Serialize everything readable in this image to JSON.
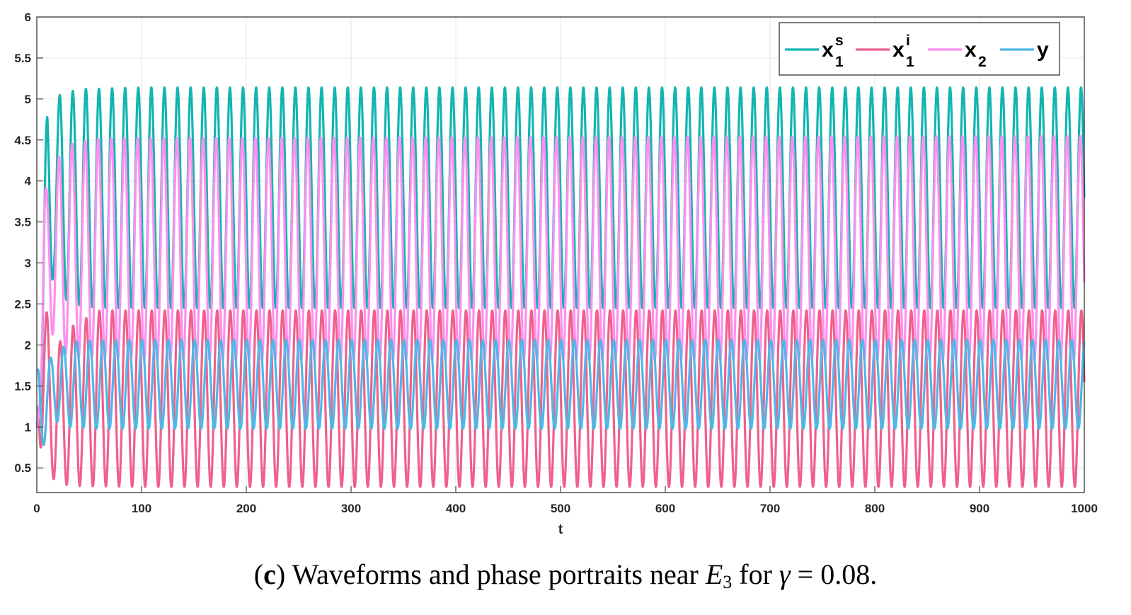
{
  "chart_data": {
    "type": "line",
    "xlabel": "t",
    "ylabel": "",
    "xlim": [
      0,
      1000
    ],
    "ylim": [
      0.2,
      6
    ],
    "grid": true,
    "legend_position": "top-right",
    "legend_orientation": "horizontal",
    "x_ticks": [
      "0",
      "100",
      "200",
      "300",
      "400",
      "500",
      "600",
      "700",
      "800",
      "900",
      "1000"
    ],
    "y_ticks": [
      "0.5",
      "1",
      "1.5",
      "2",
      "2.5",
      "3",
      "3.5",
      "4",
      "4.5",
      "5",
      "5.5",
      "6"
    ],
    "oscillation_period": 12.5,
    "series": [
      {
        "name": "x1^s",
        "base": "x",
        "sub": "1",
        "sup": "s",
        "color": "#12b5b0",
        "initial": 1.0,
        "first_peak": 3.3,
        "steady_min": 2.45,
        "steady_max": 5.14,
        "x": [
          0,
          3,
          7,
          10,
          16,
          22,
          30,
          40,
          60,
          100,
          1000
        ],
        "y": [
          1.0,
          3.3,
          1.5,
          4.85,
          2.9,
          5.05,
          2.5,
          5.12,
          2.45,
          5.14,
          5.14
        ]
      },
      {
        "name": "x1^i",
        "base": "x",
        "sub": "1",
        "sup": "i",
        "color": "#f0608c",
        "initial": 1.0,
        "first_peak": 3.0,
        "steady_min": 0.27,
        "steady_max": 2.42,
        "x": [
          0,
          3,
          8,
          15,
          22,
          30,
          40,
          60,
          100,
          1000
        ],
        "y": [
          1.0,
          3.0,
          0.45,
          1.9,
          0.3,
          2.2,
          0.28,
          2.42,
          0.27,
          2.42
        ]
      },
      {
        "name": "x2",
        "base": "x",
        "sub": "2",
        "sup": "",
        "color": "#ff8fef",
        "initial": 1.0,
        "first_peak": 3.85,
        "steady_min": 1.82,
        "steady_max": 4.55,
        "x": [
          0,
          7,
          12,
          18,
          25,
          32,
          40,
          60,
          100,
          1000
        ],
        "y": [
          1.0,
          3.85,
          2.2,
          4.25,
          1.9,
          4.45,
          1.85,
          4.52,
          1.82,
          4.55
        ]
      },
      {
        "name": "y",
        "base": "y",
        "sub": "",
        "sup": "",
        "color": "#4db8e8",
        "initial": 1.7,
        "first_peak": 1.75,
        "steady_min": 0.98,
        "steady_max": 2.06,
        "x": [
          0,
          3,
          7,
          14,
          20,
          28,
          40,
          60,
          100,
          1000
        ],
        "y": [
          1.7,
          0.62,
          1.75,
          1.1,
          1.95,
          1.0,
          2.05,
          0.98,
          2.06,
          2.06
        ]
      }
    ]
  },
  "caption": {
    "open_paren": "(",
    "label": "c",
    "close_paren": ")",
    "text_before": " Waveforms and phase portraits near ",
    "symbol": "E",
    "symbol_sub": "3",
    "text_mid": " for ",
    "param": "γ",
    "text_after": " = 0.08."
  }
}
